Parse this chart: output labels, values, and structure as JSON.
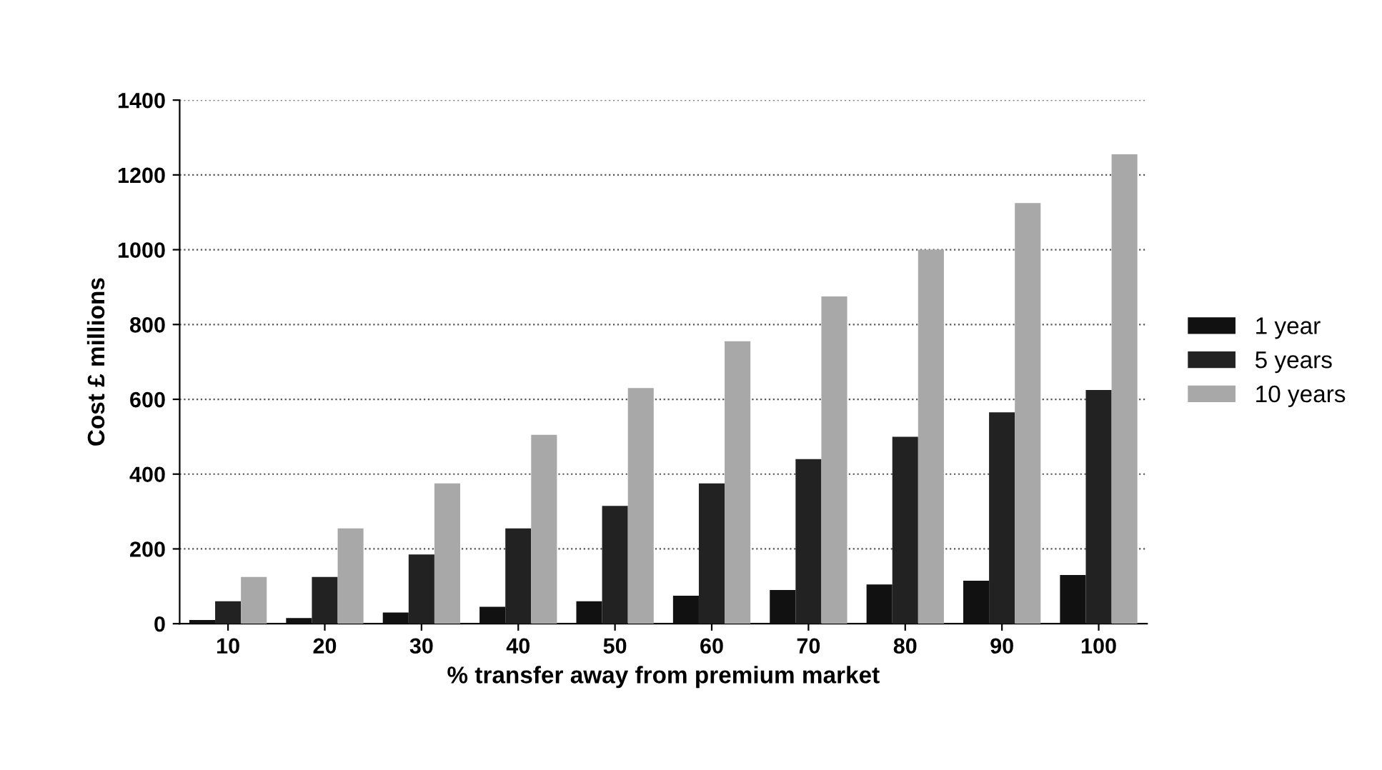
{
  "chart_data": {
    "type": "bar",
    "xlabel": "% transfer away from premium market",
    "ylabel": "Cost £ millions",
    "categories": [
      "10",
      "20",
      "30",
      "40",
      "50",
      "60",
      "70",
      "80",
      "90",
      "100"
    ],
    "series": [
      {
        "name": "1 year",
        "color": "#111111",
        "values": [
          10,
          15,
          30,
          45,
          60,
          75,
          90,
          105,
          115,
          130
        ]
      },
      {
        "name": "5 years",
        "color": "#222222",
        "values": [
          60,
          125,
          185,
          255,
          315,
          375,
          440,
          500,
          565,
          625
        ]
      },
      {
        "name": "10 years",
        "color": "#a8a8a8",
        "values": [
          125,
          255,
          375,
          505,
          630,
          755,
          875,
          1000,
          1125,
          1255
        ]
      }
    ],
    "ylim": [
      0,
      1400
    ],
    "yticks": [
      0,
      200,
      400,
      600,
      800,
      1000,
      1200,
      1400
    ],
    "grid": "y",
    "legend": "right"
  }
}
